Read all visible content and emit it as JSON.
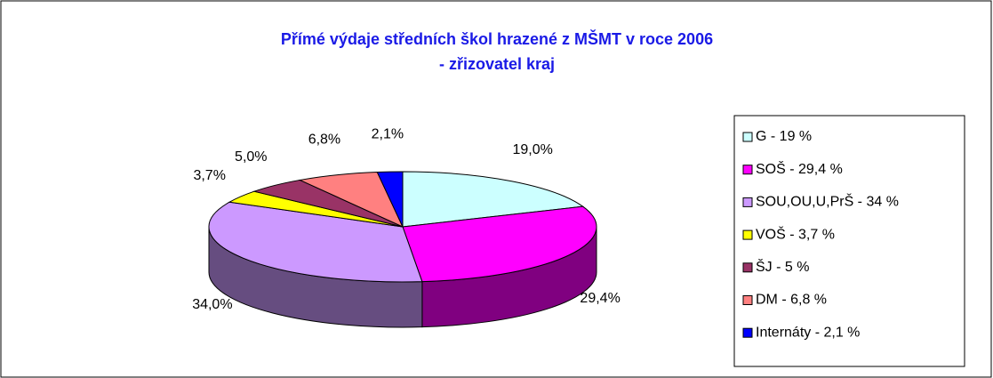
{
  "chart_data": {
    "type": "pie3d",
    "title": "Přímé výdaje středních škol hrazené z MŠMT v roce 2006",
    "subtitle": "- zřizovatel kraj",
    "categories": [
      "G - 19 %",
      "SOŠ - 29,4 %",
      "SOU,OU,U,PrŠ - 34 %",
      "VOŠ - 3,7 %",
      "ŠJ - 5 %",
      "DM - 6,8 %",
      "Internáty - 2,1 %"
    ],
    "values": [
      19.0,
      29.4,
      34.0,
      3.7,
      5.0,
      6.8,
      2.1
    ],
    "value_labels": [
      "19,0%",
      "29,4%",
      "34,0%",
      "3,7%",
      "5,0%",
      "6,8%",
      "2,1%"
    ],
    "colors": [
      "#ccffff",
      "#ff00ff",
      "#cc99ff",
      "#ffff00",
      "#993366",
      "#ff8080",
      "#0000ff"
    ],
    "legend": "right"
  }
}
